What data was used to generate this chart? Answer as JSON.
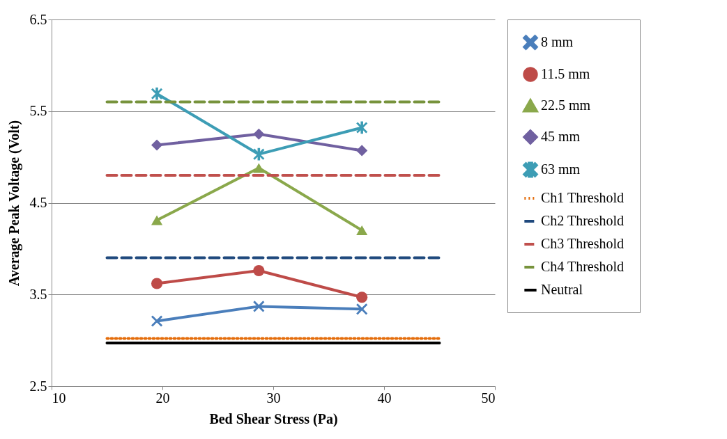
{
  "chart_data": {
    "type": "line",
    "xlabel": "Bed Shear Stress (Pa)",
    "ylabel": "Average Peak Voltage (Volt)",
    "xlim": [
      10,
      50
    ],
    "xticks": [
      10,
      20,
      30,
      40,
      50
    ],
    "ylim": [
      2.5,
      6.5
    ],
    "yticks": [
      2.5,
      3.5,
      4.5,
      5.5,
      6.5
    ],
    "grid": "y",
    "legend": "right",
    "series": [
      {
        "name": "8 mm",
        "color": "#4a7ebb",
        "marker": "cross",
        "line_style": "solid",
        "x": [
          19.5,
          28.7,
          38
        ],
        "values": [
          3.21,
          3.37,
          3.34
        ]
      },
      {
        "name": "11.5 mm",
        "color": "#be4b48",
        "marker": "circle",
        "line_style": "solid",
        "x": [
          19.5,
          28.7,
          38
        ],
        "values": [
          3.62,
          3.76,
          3.47
        ]
      },
      {
        "name": "22.5 mm",
        "color": "#8aa84b",
        "marker": "triangle",
        "line_style": "solid",
        "x": [
          19.5,
          28.7,
          38
        ],
        "values": [
          4.31,
          4.88,
          4.2
        ]
      },
      {
        "name": "45 mm",
        "color": "#7060a0",
        "marker": "diamond",
        "line_style": "solid",
        "x": [
          19.5,
          28.7,
          38
        ],
        "values": [
          5.13,
          5.25,
          5.07
        ]
      },
      {
        "name": "63 mm",
        "color": "#3d9db5",
        "marker": "star",
        "line_style": "solid",
        "x": [
          19.5,
          28.7,
          38
        ],
        "values": [
          5.69,
          5.03,
          5.32
        ]
      },
      {
        "name": "Ch1 Threshold",
        "color": "#e46c0a",
        "line_style": "dotted",
        "x": [
          15,
          45
        ],
        "values": [
          3.02,
          3.02
        ]
      },
      {
        "name": "Ch2 Threshold",
        "color": "#1f497d",
        "line_style": "dashed",
        "x": [
          15,
          45
        ],
        "values": [
          3.9,
          3.9
        ]
      },
      {
        "name": "Ch3 Threshold",
        "color": "#c0504d",
        "line_style": "dashed",
        "x": [
          15,
          45
        ],
        "values": [
          4.8,
          4.8
        ]
      },
      {
        "name": "Ch4 Threshold",
        "color": "#77933c",
        "line_style": "dashed",
        "x": [
          15,
          45
        ],
        "values": [
          5.6,
          5.6
        ]
      },
      {
        "name": "Neutral",
        "color": "#000000",
        "line_style": "solid",
        "x": [
          15,
          45
        ],
        "values": [
          2.97,
          2.97
        ]
      }
    ]
  }
}
